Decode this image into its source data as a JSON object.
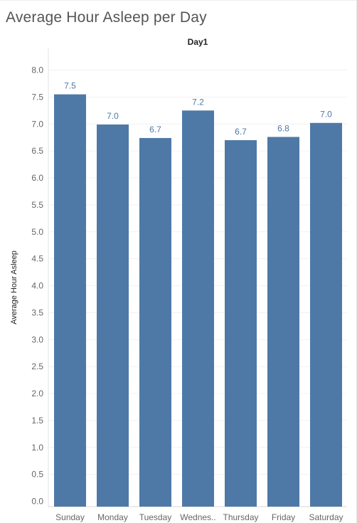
{
  "chart_data": {
    "type": "bar",
    "title": "Average Hour Asleep per Day",
    "column_header": "Day1",
    "ylabel": "Average Hour Asleep",
    "xlabel": "",
    "categories": [
      "Sunday",
      "Monday",
      "Tuesday",
      "Wednes..",
      "Thursday",
      "Friday",
      "Saturday"
    ],
    "values": [
      7.55,
      6.99,
      6.74,
      7.25,
      6.7,
      6.76,
      7.02
    ],
    "value_labels": [
      "7.5",
      "7.0",
      "6.7",
      "7.2",
      "6.7",
      "6.8",
      "7.0"
    ],
    "y_ticks": [
      "0.0",
      "0.5",
      "1.0",
      "1.5",
      "2.0",
      "2.5",
      "3.0",
      "3.5",
      "4.0",
      "4.5",
      "5.0",
      "5.5",
      "6.0",
      "6.5",
      "7.0",
      "7.5",
      "8.0"
    ],
    "ylim": [
      0,
      8.4
    ],
    "grid": true,
    "bar_color": "#4e79a7",
    "label_color": "#4e79a7"
  }
}
